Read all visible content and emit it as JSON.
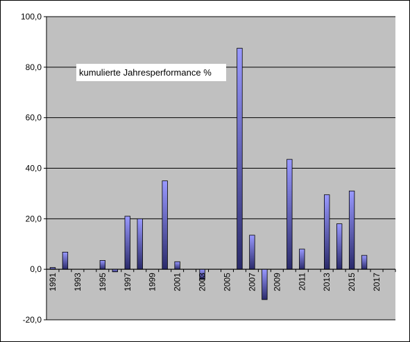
{
  "chart_data": {
    "type": "bar",
    "title": "kumulierte Jahresperformance %",
    "xlabel": "",
    "ylabel": "",
    "ylim": [
      -20,
      100
    ],
    "yticks": [
      "-20,0",
      "0,0",
      "20,0",
      "40,0",
      "60,0",
      "80,0",
      "100,0"
    ],
    "ytick_values": [
      -20,
      0,
      20,
      40,
      60,
      80,
      100
    ],
    "grid": true,
    "legend": "none",
    "bar_color": "#9999ff",
    "plot_bg": "#c0c0c0",
    "categories": [
      "1991",
      "1992",
      "1993",
      "1994",
      "1995",
      "1996",
      "1997",
      "1998",
      "1999",
      "2000",
      "2001",
      "2002",
      "2003",
      "2004",
      "2005",
      "2006",
      "2007",
      "2008",
      "2009",
      "2010",
      "2011",
      "2012",
      "2013",
      "2014",
      "2015",
      "2016",
      "2017",
      "2018"
    ],
    "x_tick_labels": [
      "1991",
      "1993",
      "1995",
      "1997",
      "1999",
      "2001",
      "2003",
      "2005",
      "2007",
      "2009",
      "2011",
      "2013",
      "2015",
      "2017"
    ],
    "values": [
      0.7,
      6.8,
      0,
      0,
      3.5,
      -1.0,
      21.0,
      20.0,
      0,
      35.0,
      3.0,
      0,
      -4.0,
      0,
      0,
      87.5,
      13.5,
      -12.0,
      0,
      43.5,
      8.0,
      0,
      29.5,
      18.0,
      31.0,
      5.5,
      0,
      0
    ]
  }
}
